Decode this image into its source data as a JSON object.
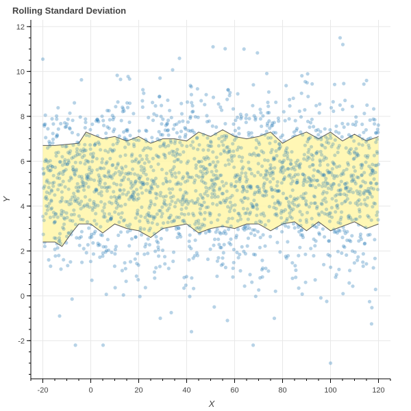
{
  "chart_data": {
    "type": "scatter",
    "title": "Rolling Standard Deviation",
    "xlabel": "X",
    "ylabel": "Y",
    "xlim": [
      -25,
      125
    ],
    "ylim": [
      -3.7,
      12.3
    ],
    "x_ticks": [
      -20,
      0,
      20,
      40,
      60,
      80,
      100,
      120
    ],
    "y_ticks": [
      -2,
      0,
      2,
      4,
      6,
      8,
      10,
      12
    ],
    "x_tick_labels": [
      "-20",
      "0",
      "20",
      "40",
      "60",
      "80",
      "100",
      "120"
    ],
    "y_tick_labels": [
      "-2",
      "0",
      "2",
      "4",
      "6",
      "8",
      "10",
      "12"
    ],
    "grid": true,
    "scatter": {
      "color": "#1f77b4",
      "point_count": 2000,
      "x_range": [
        -20,
        120
      ],
      "mean": 5,
      "std": 2,
      "notable_points": [
        {
          "x": 100,
          "y": -3.0
        },
        {
          "x": 104,
          "y": 11.5
        },
        {
          "x": 51,
          "y": 11.1
        },
        {
          "x": 42,
          "y": -1.6
        },
        {
          "x": 57,
          "y": -1.1
        },
        {
          "x": -13,
          "y": -0.9
        },
        {
          "x": 29,
          "y": -1.0
        }
      ]
    },
    "band": {
      "fill": "#fff6a8",
      "line": "#555555",
      "upper": [
        {
          "x": -20,
          "y": 6.7
        },
        {
          "x": -15,
          "y": 6.7
        },
        {
          "x": -5,
          "y": 6.8
        },
        {
          "x": -2,
          "y": 7.3
        },
        {
          "x": 5,
          "y": 7.0
        },
        {
          "x": 10,
          "y": 7.1
        },
        {
          "x": 15,
          "y": 6.9
        },
        {
          "x": 20,
          "y": 7.1
        },
        {
          "x": 25,
          "y": 6.8
        },
        {
          "x": 30,
          "y": 7.0
        },
        {
          "x": 35,
          "y": 7.0
        },
        {
          "x": 40,
          "y": 6.9
        },
        {
          "x": 45,
          "y": 7.3
        },
        {
          "x": 50,
          "y": 7.1
        },
        {
          "x": 55,
          "y": 7.4
        },
        {
          "x": 60,
          "y": 7.1
        },
        {
          "x": 65,
          "y": 7.0
        },
        {
          "x": 70,
          "y": 7.1
        },
        {
          "x": 75,
          "y": 7.3
        },
        {
          "x": 80,
          "y": 6.8
        },
        {
          "x": 85,
          "y": 7.1
        },
        {
          "x": 90,
          "y": 7.3
        },
        {
          "x": 95,
          "y": 7.0
        },
        {
          "x": 100,
          "y": 7.3
        },
        {
          "x": 105,
          "y": 6.9
        },
        {
          "x": 110,
          "y": 7.2
        },
        {
          "x": 115,
          "y": 6.9
        },
        {
          "x": 120,
          "y": 7.1
        }
      ],
      "lower": [
        {
          "x": -20,
          "y": 2.4
        },
        {
          "x": -15,
          "y": 2.4
        },
        {
          "x": -12,
          "y": 2.2
        },
        {
          "x": -8,
          "y": 2.8
        },
        {
          "x": -5,
          "y": 3.2
        },
        {
          "x": 0,
          "y": 3.2
        },
        {
          "x": 5,
          "y": 2.8
        },
        {
          "x": 10,
          "y": 3.2
        },
        {
          "x": 15,
          "y": 3.0
        },
        {
          "x": 20,
          "y": 2.9
        },
        {
          "x": 25,
          "y": 2.6
        },
        {
          "x": 30,
          "y": 3.0
        },
        {
          "x": 35,
          "y": 3.1
        },
        {
          "x": 40,
          "y": 3.2
        },
        {
          "x": 45,
          "y": 2.8
        },
        {
          "x": 50,
          "y": 3.0
        },
        {
          "x": 55,
          "y": 3.1
        },
        {
          "x": 60,
          "y": 3.0
        },
        {
          "x": 65,
          "y": 3.2
        },
        {
          "x": 70,
          "y": 3.2
        },
        {
          "x": 75,
          "y": 2.9
        },
        {
          "x": 80,
          "y": 3.2
        },
        {
          "x": 85,
          "y": 3.3
        },
        {
          "x": 90,
          "y": 2.9
        },
        {
          "x": 95,
          "y": 3.3
        },
        {
          "x": 100,
          "y": 2.9
        },
        {
          "x": 105,
          "y": 3.1
        },
        {
          "x": 110,
          "y": 3.3
        },
        {
          "x": 115,
          "y": 3.0
        },
        {
          "x": 120,
          "y": 3.2
        }
      ]
    }
  }
}
